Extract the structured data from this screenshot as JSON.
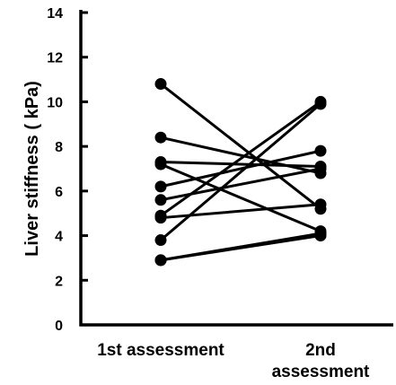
{
  "chart_data": {
    "type": "line",
    "title": "",
    "xlabel": "",
    "ylabel": "Liver stiffness ( kPa)",
    "categories": [
      [
        "1st assessment"
      ],
      [
        "2nd",
        "assessment"
      ]
    ],
    "ylim": [
      0,
      14
    ],
    "yticks": [
      0,
      2,
      4,
      6,
      8,
      10,
      12,
      14
    ],
    "grid": false,
    "legend": "none",
    "color": "#000000",
    "series": [
      {
        "values": [
          10.8,
          5.2
        ]
      },
      {
        "values": [
          8.4,
          6.8
        ]
      },
      {
        "values": [
          7.3,
          7.1
        ]
      },
      {
        "values": [
          7.2,
          4.2
        ]
      },
      {
        "values": [
          6.2,
          7.8
        ]
      },
      {
        "values": [
          5.6,
          7.0
        ]
      },
      {
        "values": [
          4.9,
          10.0
        ]
      },
      {
        "values": [
          4.8,
          5.4
        ]
      },
      {
        "values": [
          3.8,
          9.9
        ]
      },
      {
        "values": [
          2.9,
          4.0
        ]
      },
      {
        "values": [
          2.9,
          4.1
        ]
      }
    ]
  }
}
